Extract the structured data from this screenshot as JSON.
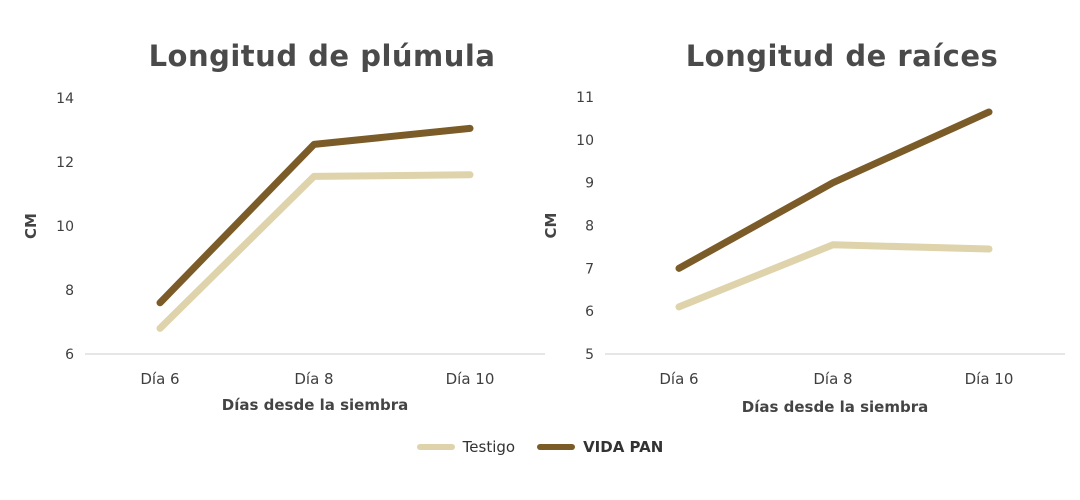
{
  "colors": {
    "testigo": "#ded3ab",
    "vida_pan": "#7b5b27",
    "grid": "#cccccc",
    "text": "#4a4a4a"
  },
  "legend": [
    {
      "name": "Testigo",
      "color": "#ded3ab",
      "bold": false
    },
    {
      "name": "VIDA PAN",
      "color": "#7b5b27",
      "bold": true
    }
  ],
  "chart_data": [
    {
      "type": "line",
      "title": "Longitud de plúmula",
      "xlabel": "Días desde la siembra",
      "ylabel": "CM",
      "categories": [
        "Día 6",
        "Día 8",
        "Día 10"
      ],
      "ylim": [
        6,
        14
      ],
      "yticks": [
        6,
        8,
        10,
        12,
        14
      ],
      "grid": false,
      "series": [
        {
          "name": "Testigo",
          "color": "#ded3ab",
          "values": [
            6.8,
            11.55,
            11.6
          ]
        },
        {
          "name": "VIDA PAN",
          "color": "#7b5b27",
          "values": [
            7.6,
            12.55,
            13.05
          ]
        }
      ]
    },
    {
      "type": "line",
      "title": "Longitud de raíces",
      "xlabel": "Días desde la siembra",
      "ylabel": "CM",
      "categories": [
        "Día 6",
        "Día 8",
        "Día 10"
      ],
      "ylim": [
        5,
        11
      ],
      "yticks": [
        5,
        6,
        7,
        8,
        9,
        10,
        11
      ],
      "grid": false,
      "series": [
        {
          "name": "Testigo",
          "color": "#ded3ab",
          "values": [
            6.1,
            7.55,
            7.45
          ]
        },
        {
          "name": "VIDA PAN",
          "color": "#7b5b27",
          "values": [
            7.0,
            9.0,
            10.65
          ]
        }
      ]
    }
  ]
}
